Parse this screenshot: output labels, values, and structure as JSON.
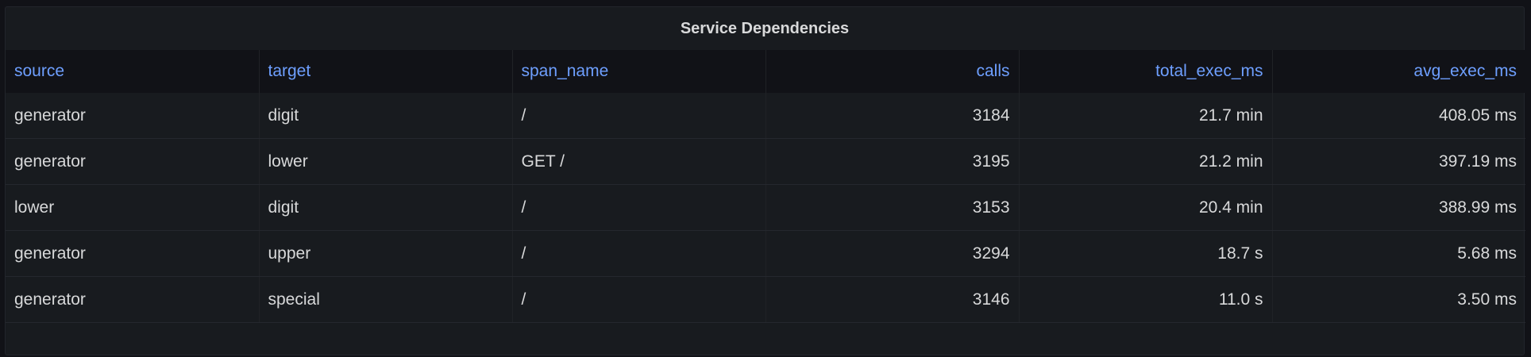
{
  "panel": {
    "title": "Service Dependencies"
  },
  "table": {
    "columns": [
      "source",
      "target",
      "span_name",
      "calls",
      "total_exec_ms",
      "avg_exec_ms"
    ],
    "rows": [
      [
        "generator",
        "digit",
        "/",
        "3184",
        "21.7 min",
        "408.05 ms"
      ],
      [
        "generator",
        "lower",
        "GET /",
        "3195",
        "21.2 min",
        "397.19 ms"
      ],
      [
        "lower",
        "digit",
        "/",
        "3153",
        "20.4 min",
        "388.99 ms"
      ],
      [
        "generator",
        "upper",
        "/",
        "3294",
        "18.7 s",
        "5.68 ms"
      ],
      [
        "generator",
        "special",
        "/",
        "3146",
        "11.0 s",
        "3.50 ms"
      ]
    ]
  }
}
